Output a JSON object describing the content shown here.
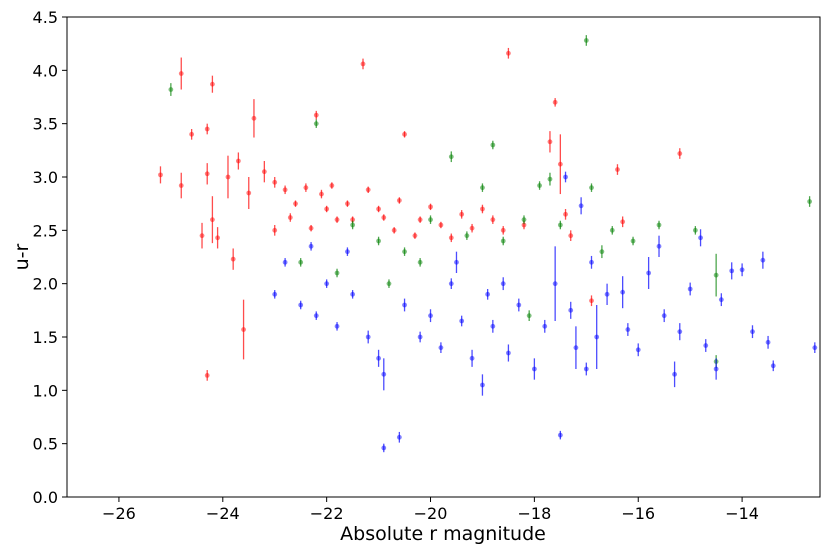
{
  "chart_data": {
    "type": "scatter",
    "title": "",
    "xlabel": "Absolute r magnitude",
    "ylabel": "u-r",
    "xlim": [
      -27,
      -12.5
    ],
    "ylim": [
      0.0,
      4.5
    ],
    "x_inverted": false,
    "grid": false,
    "legend": "none",
    "xticks": [
      -26,
      -24,
      -22,
      -20,
      -18,
      -16,
      -14
    ],
    "xtick_labels": [
      "−26",
      "−24",
      "−22",
      "−20",
      "−18",
      "−16",
      "−14"
    ],
    "yticks": [
      0.0,
      0.5,
      1.0,
      1.5,
      2.0,
      2.5,
      3.0,
      3.5,
      4.0,
      4.5
    ],
    "ytick_labels": [
      "0.0",
      "0.5",
      "1.0",
      "1.5",
      "2.0",
      "2.5",
      "3.0",
      "3.5",
      "4.0",
      "4.5"
    ],
    "series": [
      {
        "color": "#ff0000",
        "points": [
          [
            -25.2,
            3.02,
            0.08
          ],
          [
            -24.8,
            3.97,
            0.15
          ],
          [
            -24.8,
            2.92,
            0.12
          ],
          [
            -24.6,
            3.4,
            0.05
          ],
          [
            -24.4,
            2.45,
            0.12
          ],
          [
            -24.2,
            3.87,
            0.08
          ],
          [
            -24.3,
            3.45,
            0.05
          ],
          [
            -24.3,
            3.03,
            0.1
          ],
          [
            -24.2,
            2.6,
            0.22
          ],
          [
            -24.1,
            2.43,
            0.1
          ],
          [
            -24.3,
            1.14,
            0.05
          ],
          [
            -23.6,
            1.57,
            0.28
          ],
          [
            -23.8,
            2.23,
            0.1
          ],
          [
            -23.9,
            3.0,
            0.2
          ],
          [
            -23.5,
            2.85,
            0.15
          ],
          [
            -23.4,
            3.55,
            0.18
          ],
          [
            -23.2,
            3.05,
            0.1
          ],
          [
            -23.0,
            2.95,
            0.05
          ],
          [
            -22.8,
            2.88,
            0.04
          ],
          [
            -22.6,
            2.75,
            0.03
          ],
          [
            -22.4,
            2.9,
            0.04
          ],
          [
            -22.2,
            3.58,
            0.04
          ],
          [
            -22.0,
            2.7,
            0.03
          ],
          [
            -21.8,
            2.6,
            0.03
          ],
          [
            -21.6,
            2.75,
            0.03
          ],
          [
            -21.3,
            4.06,
            0.05
          ],
          [
            -21.0,
            2.7,
            0.03
          ],
          [
            -20.7,
            2.5,
            0.03
          ],
          [
            -20.5,
            3.4,
            0.03
          ],
          [
            -20.2,
            2.6,
            0.03
          ],
          [
            -19.8,
            2.55,
            0.03
          ],
          [
            -19.4,
            2.65,
            0.04
          ],
          [
            -19.0,
            2.7,
            0.04
          ],
          [
            -18.6,
            2.5,
            0.04
          ],
          [
            -18.5,
            4.16,
            0.05
          ],
          [
            -18.2,
            2.55,
            0.04
          ],
          [
            -17.7,
            3.33,
            0.1
          ],
          [
            -17.6,
            3.7,
            0.04
          ],
          [
            -17.5,
            3.12,
            0.28
          ],
          [
            -17.4,
            2.65,
            0.05
          ],
          [
            -17.3,
            2.45,
            0.05
          ],
          [
            -16.9,
            1.84,
            0.05
          ],
          [
            -16.4,
            3.07,
            0.05
          ],
          [
            -16.3,
            2.58,
            0.05
          ],
          [
            -15.2,
            3.22,
            0.05
          ],
          [
            -23.7,
            3.15,
            0.08
          ],
          [
            -23.0,
            2.5,
            0.05
          ],
          [
            -22.7,
            2.62,
            0.04
          ],
          [
            -22.3,
            2.52,
            0.03
          ],
          [
            -22.1,
            2.84,
            0.04
          ],
          [
            -21.9,
            2.92,
            0.03
          ],
          [
            -21.5,
            2.6,
            0.03
          ],
          [
            -21.2,
            2.88,
            0.03
          ],
          [
            -20.9,
            2.62,
            0.03
          ],
          [
            -20.6,
            2.78,
            0.03
          ],
          [
            -20.3,
            2.45,
            0.03
          ],
          [
            -20.0,
            2.72,
            0.03
          ],
          [
            -19.6,
            2.43,
            0.04
          ],
          [
            -19.2,
            2.52,
            0.04
          ],
          [
            -18.8,
            2.6,
            0.04
          ]
        ]
      },
      {
        "color": "#008000",
        "points": [
          [
            -25.0,
            3.82,
            0.06
          ],
          [
            -22.2,
            3.5,
            0.04
          ],
          [
            -21.5,
            2.55,
            0.04
          ],
          [
            -21.0,
            2.4,
            0.04
          ],
          [
            -20.5,
            2.3,
            0.04
          ],
          [
            -20.0,
            2.6,
            0.04
          ],
          [
            -19.6,
            3.19,
            0.05
          ],
          [
            -19.3,
            2.45,
            0.04
          ],
          [
            -19.0,
            2.9,
            0.04
          ],
          [
            -18.8,
            3.3,
            0.04
          ],
          [
            -18.6,
            2.4,
            0.04
          ],
          [
            -18.2,
            2.6,
            0.04
          ],
          [
            -17.9,
            2.92,
            0.04
          ],
          [
            -17.7,
            2.98,
            0.06
          ],
          [
            -17.5,
            2.55,
            0.04
          ],
          [
            -17.0,
            4.28,
            0.05
          ],
          [
            -16.9,
            2.9,
            0.04
          ],
          [
            -16.7,
            2.3,
            0.06
          ],
          [
            -16.5,
            2.5,
            0.04
          ],
          [
            -16.1,
            2.4,
            0.04
          ],
          [
            -15.6,
            2.55,
            0.04
          ],
          [
            -14.9,
            2.5,
            0.04
          ],
          [
            -14.5,
            2.08,
            0.2
          ],
          [
            -14.5,
            1.27,
            0.06
          ],
          [
            -12.7,
            2.77,
            0.05
          ],
          [
            -18.1,
            1.7,
            0.05
          ],
          [
            -22.5,
            2.2,
            0.04
          ],
          [
            -21.8,
            2.1,
            0.04
          ],
          [
            -20.8,
            2.0,
            0.04
          ],
          [
            -20.2,
            2.2,
            0.04
          ]
        ]
      },
      {
        "color": "#0000ff",
        "points": [
          [
            -23.0,
            1.9,
            0.04
          ],
          [
            -22.8,
            2.2,
            0.04
          ],
          [
            -22.5,
            1.8,
            0.04
          ],
          [
            -22.2,
            1.7,
            0.04
          ],
          [
            -22.0,
            2.0,
            0.04
          ],
          [
            -21.8,
            1.6,
            0.04
          ],
          [
            -21.5,
            1.9,
            0.04
          ],
          [
            -21.2,
            1.5,
            0.06
          ],
          [
            -21.0,
            1.3,
            0.08
          ],
          [
            -20.9,
            1.15,
            0.15
          ],
          [
            -20.9,
            0.46,
            0.04
          ],
          [
            -20.6,
            0.56,
            0.05
          ],
          [
            -20.5,
            1.8,
            0.06
          ],
          [
            -20.2,
            1.5,
            0.05
          ],
          [
            -20.0,
            1.7,
            0.06
          ],
          [
            -19.8,
            1.4,
            0.05
          ],
          [
            -19.5,
            2.2,
            0.1
          ],
          [
            -19.2,
            1.3,
            0.08
          ],
          [
            -19.0,
            1.05,
            0.1
          ],
          [
            -18.8,
            1.6,
            0.06
          ],
          [
            -18.5,
            1.35,
            0.08
          ],
          [
            -18.3,
            1.8,
            0.06
          ],
          [
            -18.0,
            1.2,
            0.1
          ],
          [
            -17.8,
            1.6,
            0.06
          ],
          [
            -17.6,
            2.0,
            0.35
          ],
          [
            -17.5,
            0.58,
            0.04
          ],
          [
            -17.3,
            1.75,
            0.08
          ],
          [
            -17.2,
            1.4,
            0.2
          ],
          [
            -17.1,
            2.73,
            0.08
          ],
          [
            -17.0,
            1.2,
            0.06
          ],
          [
            -16.8,
            1.5,
            0.3
          ],
          [
            -16.6,
            1.9,
            0.1
          ],
          [
            -16.3,
            1.92,
            0.15
          ],
          [
            -16.2,
            1.57,
            0.06
          ],
          [
            -16.0,
            1.38,
            0.06
          ],
          [
            -15.8,
            2.1,
            0.15
          ],
          [
            -15.6,
            2.35,
            0.1
          ],
          [
            -15.5,
            1.7,
            0.06
          ],
          [
            -15.3,
            1.15,
            0.12
          ],
          [
            -15.2,
            1.55,
            0.08
          ],
          [
            -15.0,
            1.95,
            0.06
          ],
          [
            -14.8,
            2.43,
            0.08
          ],
          [
            -14.7,
            1.42,
            0.06
          ],
          [
            -14.5,
            1.2,
            0.1
          ],
          [
            -14.4,
            1.85,
            0.06
          ],
          [
            -14.2,
            2.12,
            0.08
          ],
          [
            -14.0,
            2.13,
            0.06
          ],
          [
            -13.8,
            1.55,
            0.06
          ],
          [
            -13.6,
            2.22,
            0.08
          ],
          [
            -13.5,
            1.45,
            0.06
          ],
          [
            -13.4,
            1.23,
            0.05
          ],
          [
            -12.6,
            1.4,
            0.05
          ],
          [
            -17.4,
            3.0,
            0.05
          ],
          [
            -16.9,
            2.2,
            0.06
          ],
          [
            -18.6,
            2.0,
            0.06
          ],
          [
            -19.6,
            2.0,
            0.05
          ],
          [
            -21.6,
            2.3,
            0.04
          ],
          [
            -22.3,
            2.35,
            0.04
          ],
          [
            -19.4,
            1.65,
            0.05
          ],
          [
            -18.9,
            1.9,
            0.05
          ]
        ]
      }
    ]
  }
}
